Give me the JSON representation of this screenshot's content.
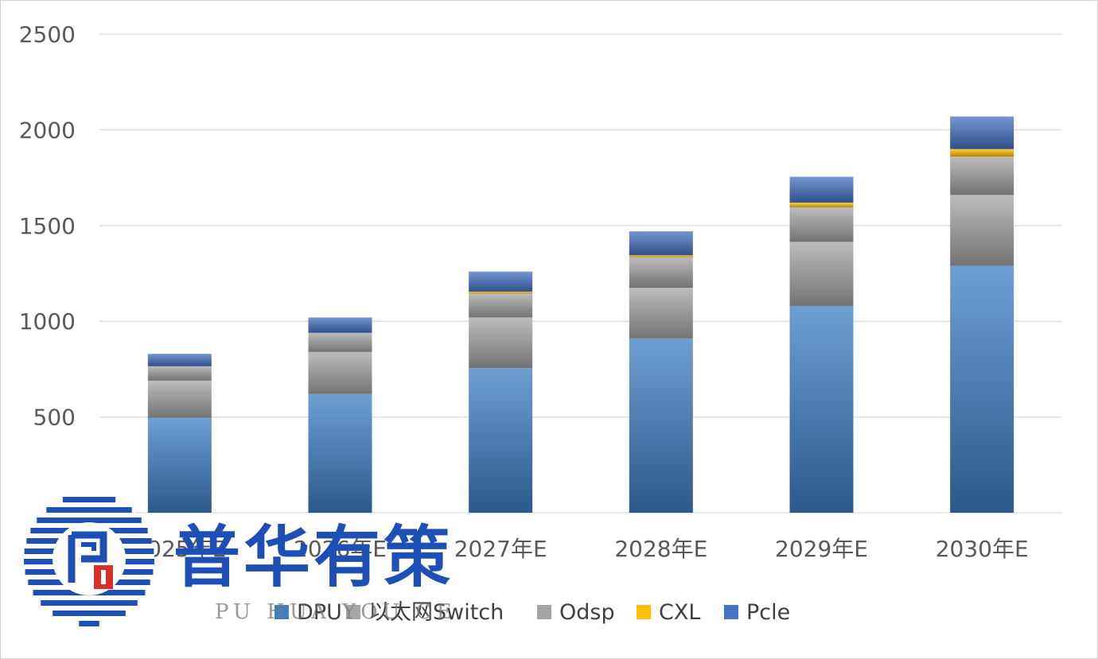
{
  "chart_data": {
    "type": "bar",
    "stacked": true,
    "categories": [
      "2025年E",
      "2026年E",
      "2027年E",
      "2028年E",
      "2029年E",
      "2030年E"
    ],
    "series": [
      {
        "name": "DPU",
        "color": "#3d7fc4",
        "values": [
          495,
          620,
          755,
          910,
          1080,
          1290
        ]
      },
      {
        "name": "以太网Switch",
        "color": "#a6a6a6",
        "values": [
          195,
          220,
          265,
          265,
          335,
          370
        ]
      },
      {
        "name": "Odsp",
        "color": "#a5a5a5",
        "values": [
          75,
          100,
          125,
          160,
          180,
          200
        ]
      },
      {
        "name": "CXL",
        "color": "#ffc000",
        "values": [
          0,
          0,
          10,
          10,
          25,
          40
        ]
      },
      {
        "name": "Pcle",
        "color": "#4472c4",
        "values": [
          65,
          80,
          105,
          125,
          135,
          170
        ]
      }
    ],
    "ylim": [
      0,
      2500
    ],
    "yticks": [
      0,
      500,
      1000,
      1500,
      2000,
      2500
    ],
    "grid": true,
    "legend": "bottom"
  },
  "watermark": {
    "text": "普华有策",
    "sub": "PU HUA YOU CE",
    "logo": "puhua-logo-icon"
  }
}
